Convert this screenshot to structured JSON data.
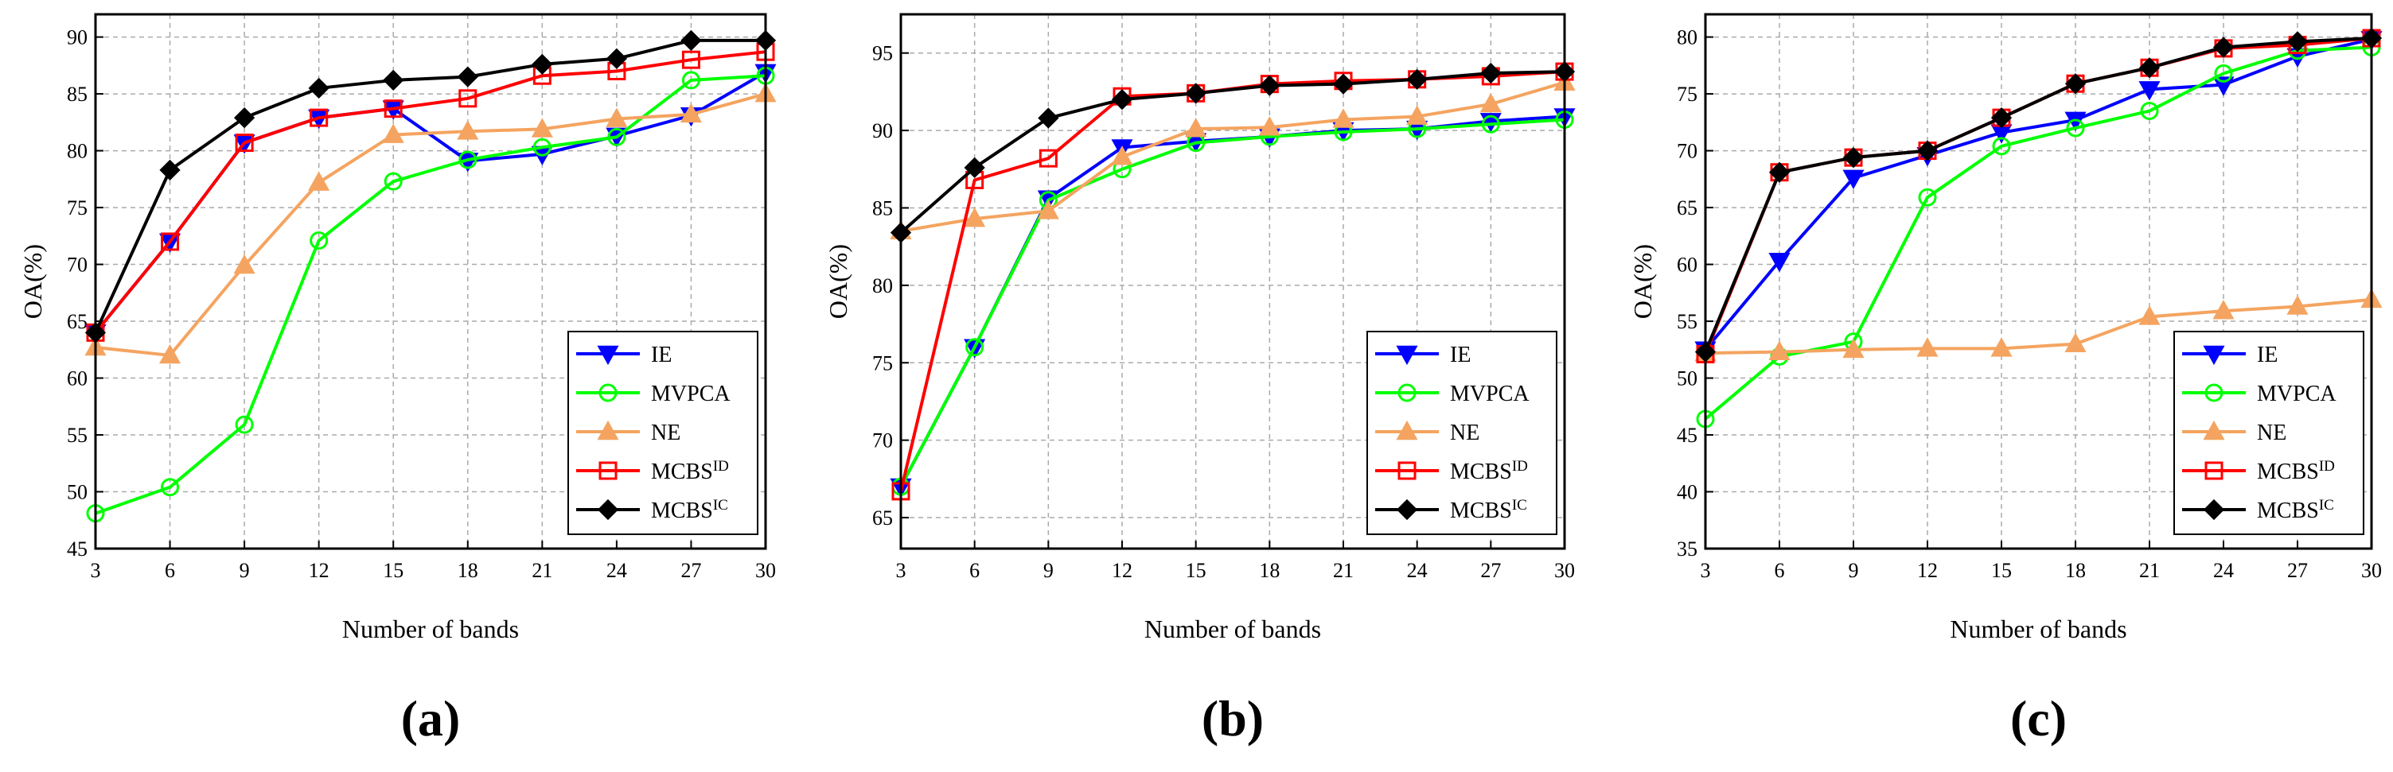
{
  "chart_data": [
    {
      "type": "line",
      "panel_label": "(a)",
      "xlabel": "Number of bands",
      "ylabel": "OA(%)",
      "x": [
        3,
        6,
        9,
        12,
        15,
        18,
        21,
        24,
        27,
        30
      ],
      "xlim": [
        3,
        30
      ],
      "ylim": [
        45,
        92
      ],
      "yticks": [
        45,
        50,
        55,
        60,
        65,
        70,
        75,
        80,
        85,
        90
      ],
      "grid": true,
      "legend_position": "bottom-right",
      "series": [
        {
          "name": "IE",
          "sup": "",
          "color": "#0000ff",
          "marker": "triangle-down",
          "values": [
            64.0,
            72.0,
            80.7,
            82.9,
            83.7,
            79.1,
            79.7,
            81.3,
            83.1,
            86.9
          ]
        },
        {
          "name": "MVPCA",
          "sup": "",
          "color": "#00ff00",
          "marker": "circle",
          "values": [
            48.1,
            50.4,
            55.9,
            72.1,
            77.3,
            79.2,
            80.3,
            81.2,
            86.2,
            86.6
          ]
        },
        {
          "name": "NE",
          "sup": "",
          "color": "#f4a460",
          "marker": "triangle-up",
          "values": [
            62.7,
            62.0,
            69.9,
            77.2,
            81.4,
            81.7,
            81.9,
            82.8,
            83.2,
            85.0
          ]
        },
        {
          "name": "MCBS",
          "sup": "ID",
          "color": "#ff0000",
          "marker": "square",
          "values": [
            64.0,
            72.0,
            80.7,
            82.9,
            83.7,
            84.6,
            86.6,
            87.0,
            88.0,
            88.7
          ]
        },
        {
          "name": "MCBS",
          "sup": "IC",
          "color": "#000000",
          "marker": "diamond",
          "values": [
            64.0,
            78.3,
            82.9,
            85.5,
            86.2,
            86.5,
            87.6,
            88.1,
            89.7,
            89.7
          ]
        }
      ]
    },
    {
      "type": "line",
      "panel_label": "(b)",
      "xlabel": "Number of bands",
      "ylabel": "OA(%)",
      "x": [
        3,
        6,
        9,
        12,
        15,
        18,
        21,
        24,
        27,
        30
      ],
      "xlim": [
        3,
        30
      ],
      "ylim": [
        63,
        97.5
      ],
      "yticks": [
        65,
        70,
        75,
        80,
        85,
        90,
        95
      ],
      "grid": true,
      "legend_position": "bottom-right",
      "series": [
        {
          "name": "IE",
          "sup": "",
          "color": "#0000ff",
          "marker": "triangle-down",
          "values": [
            67.0,
            76.0,
            85.6,
            88.9,
            89.3,
            89.6,
            90.0,
            90.1,
            90.6,
            90.9
          ]
        },
        {
          "name": "MVPCA",
          "sup": "",
          "color": "#00ff00",
          "marker": "circle",
          "values": [
            67.0,
            76.0,
            85.5,
            87.5,
            89.2,
            89.6,
            89.9,
            90.1,
            90.4,
            90.7
          ]
        },
        {
          "name": "NE",
          "sup": "",
          "color": "#f4a460",
          "marker": "triangle-up",
          "values": [
            83.5,
            84.3,
            84.8,
            88.3,
            90.1,
            90.2,
            90.7,
            90.9,
            91.7,
            93.1
          ]
        },
        {
          "name": "MCBS",
          "sup": "ID",
          "color": "#ff0000",
          "marker": "square",
          "values": [
            66.7,
            86.8,
            88.2,
            92.2,
            92.4,
            93.0,
            93.2,
            93.3,
            93.5,
            93.8
          ]
        },
        {
          "name": "MCBS",
          "sup": "IC",
          "color": "#000000",
          "marker": "diamond",
          "values": [
            83.4,
            87.6,
            90.8,
            92.0,
            92.4,
            92.9,
            93.0,
            93.3,
            93.7,
            93.8
          ]
        }
      ]
    },
    {
      "type": "line",
      "panel_label": "(c)",
      "xlabel": "Number of bands",
      "ylabel": "OA(%)",
      "x": [
        3,
        6,
        9,
        12,
        15,
        18,
        21,
        24,
        27,
        30
      ],
      "xlim": [
        3,
        30
      ],
      "ylim": [
        35,
        82
      ],
      "yticks": [
        35,
        40,
        45,
        50,
        55,
        60,
        65,
        70,
        75,
        80
      ],
      "grid": true,
      "legend_position": "bottom-right",
      "series": [
        {
          "name": "IE",
          "sup": "",
          "color": "#0000ff",
          "marker": "triangle-down",
          "values": [
            52.5,
            60.3,
            67.6,
            69.6,
            71.6,
            72.7,
            75.4,
            75.8,
            78.3,
            79.8
          ]
        },
        {
          "name": "MVPCA",
          "sup": "",
          "color": "#00ff00",
          "marker": "circle",
          "values": [
            46.4,
            51.9,
            53.2,
            65.9,
            70.4,
            72.0,
            73.5,
            76.8,
            78.8,
            79.1
          ]
        },
        {
          "name": "NE",
          "sup": "",
          "color": "#f4a460",
          "marker": "triangle-up",
          "values": [
            52.2,
            52.3,
            52.5,
            52.6,
            52.6,
            53.0,
            55.4,
            55.9,
            56.3,
            56.9
          ]
        },
        {
          "name": "MCBS",
          "sup": "ID",
          "color": "#ff0000",
          "marker": "square",
          "values": [
            52.1,
            68.1,
            69.4,
            70.0,
            72.9,
            75.9,
            77.3,
            79.0,
            79.3,
            79.9
          ]
        },
        {
          "name": "MCBS",
          "sup": "IC",
          "color": "#000000",
          "marker": "diamond",
          "values": [
            52.3,
            68.1,
            69.4,
            70.0,
            72.9,
            75.9,
            77.3,
            79.1,
            79.6,
            79.9
          ]
        }
      ]
    }
  ]
}
